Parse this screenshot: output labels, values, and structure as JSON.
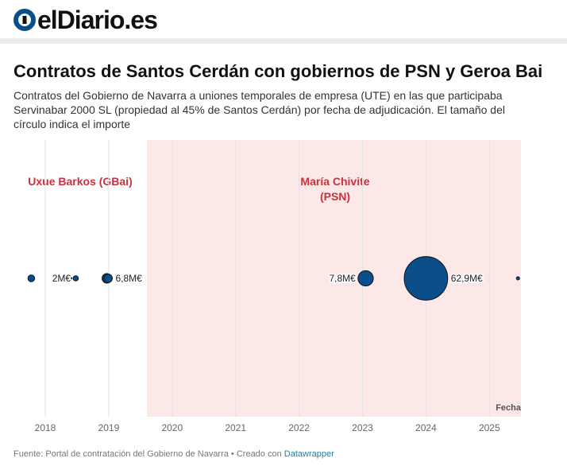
{
  "brand": {
    "name": "elDiario.es",
    "colors": {
      "text": "#111111",
      "accent": "#0a4f8a"
    }
  },
  "title": "Contratos de Santos Cerdán con gobiernos de PSN y Geroa Bai",
  "subtitle": "Contratos del Gobierno de Navarra a uniones temporales de empresa (UTE) en las que participaba Servinabar 2000 SL (propiedad al 45% de Santos Cerdán) por fecha de adjudicación. El tamaño del círculo indica el importe",
  "footer": {
    "source_text": "Fuente: Portal de contratación del Gobierno de Navarra • Creado con",
    "credit_link": "Datawrapper"
  },
  "chart_data": {
    "type": "scatter",
    "title": "Contratos de Santos Cerdán con gobiernos de PSN y Geroa Bai",
    "xlabel": "Fecha",
    "ylabel": "",
    "xlim": [
      2017.75,
      2025.5
    ],
    "x_ticks": [
      "2018",
      "2019",
      "2020",
      "2021",
      "2022",
      "2023",
      "2024",
      "2025"
    ],
    "x_tick_values": [
      2018,
      2019,
      2020,
      2021,
      2022,
      2023,
      2024,
      2025
    ],
    "grid": "vertical",
    "size_encoding": "importe (M€)",
    "colors": {
      "point": "#0a4f8a",
      "point_stroke": "#111111",
      "period_band": "#fde8e8",
      "period_label": "#c8323c",
      "grid": "#e2e2e2"
    },
    "periods": [
      {
        "label": [
          "Uxue Barkos (GBai)"
        ],
        "start": 2015.5,
        "end": 2019.6,
        "shaded": false
      },
      {
        "label": [
          "María Chivite",
          "(PSN)"
        ],
        "start": 2019.6,
        "end": 2025.5,
        "shaded": true
      }
    ],
    "points": [
      {
        "x": 2017.78,
        "value": 1.5,
        "label": ""
      },
      {
        "x": 2018.38,
        "value": 0.9,
        "label": ""
      },
      {
        "x": 2018.48,
        "value": 0.9,
        "label": "2M€"
      },
      {
        "x": 2018.97,
        "value": 3.0,
        "label": ""
      },
      {
        "x": 2018.99,
        "value": 2.4,
        "label": "6,8M€"
      },
      {
        "x": 2023.05,
        "value": 7.8,
        "label": "7,8M€"
      },
      {
        "x": 2024.0,
        "value": 62.9,
        "label": "62,9M€"
      },
      {
        "x": 2025.45,
        "value": 0.02,
        "label": ""
      }
    ]
  }
}
